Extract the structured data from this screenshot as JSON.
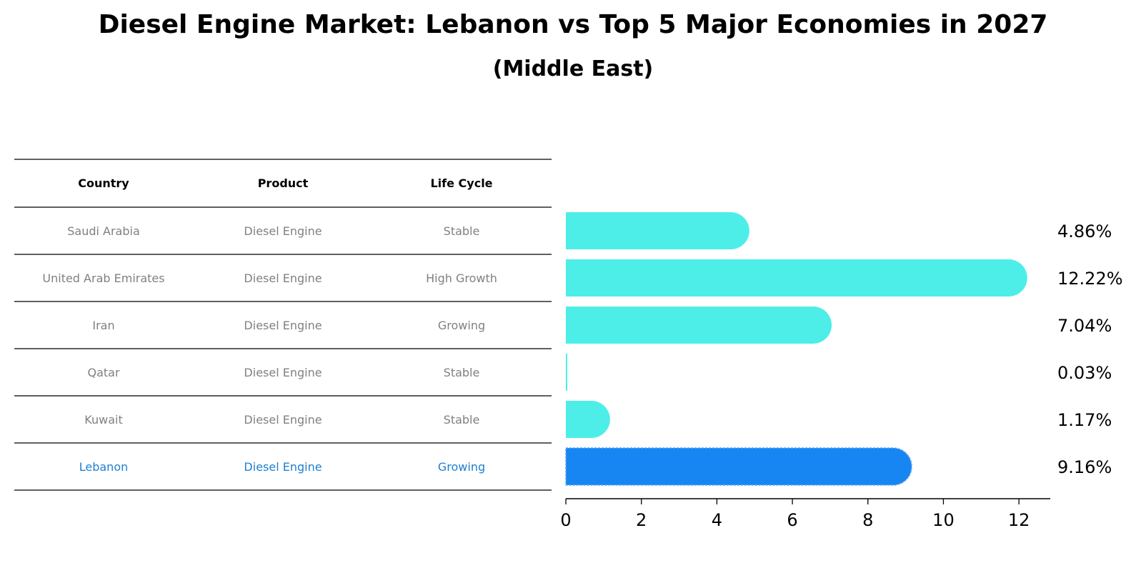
{
  "title": "Diesel Engine Market: Lebanon vs Top 5 Major Economies in 2027",
  "subtitle": "(Middle East)",
  "table": {
    "headers": [
      "Country",
      "Product",
      "Life Cycle"
    ],
    "rows": [
      [
        "Saudi Arabia",
        "Diesel Engine",
        "Stable"
      ],
      [
        "United Arab Emirates",
        "Diesel Engine",
        "High Growth"
      ],
      [
        "Iran",
        "Diesel Engine",
        "Growing"
      ],
      [
        "Qatar",
        "Diesel Engine",
        "Stable"
      ],
      [
        "Kuwait",
        "Diesel Engine",
        "Stable"
      ],
      [
        "Lebanon",
        "Diesel Engine",
        "Growing"
      ]
    ],
    "highlight_row": 5
  },
  "colors": {
    "bar": "#4deee8",
    "highlight_bar": "#1786f2",
    "row_text": "#808080",
    "highlight_text": "#1f7fd0"
  },
  "chart_data": {
    "type": "bar",
    "orientation": "horizontal",
    "categories": [
      "Saudi Arabia",
      "United Arab Emirates",
      "Iran",
      "Qatar",
      "Kuwait",
      "Lebanon"
    ],
    "values": [
      4.86,
      12.22,
      7.04,
      0.03,
      1.17,
      9.16
    ],
    "value_labels": [
      "4.86%",
      "12.22%",
      "7.04%",
      "0.03%",
      "1.17%",
      "9.16%"
    ],
    "highlight": "Lebanon",
    "xlim": [
      0,
      12.83
    ],
    "xticks": [
      0,
      2,
      4,
      6,
      8,
      10,
      12
    ],
    "xlabel": "",
    "ylabel": "",
    "grid": false
  }
}
